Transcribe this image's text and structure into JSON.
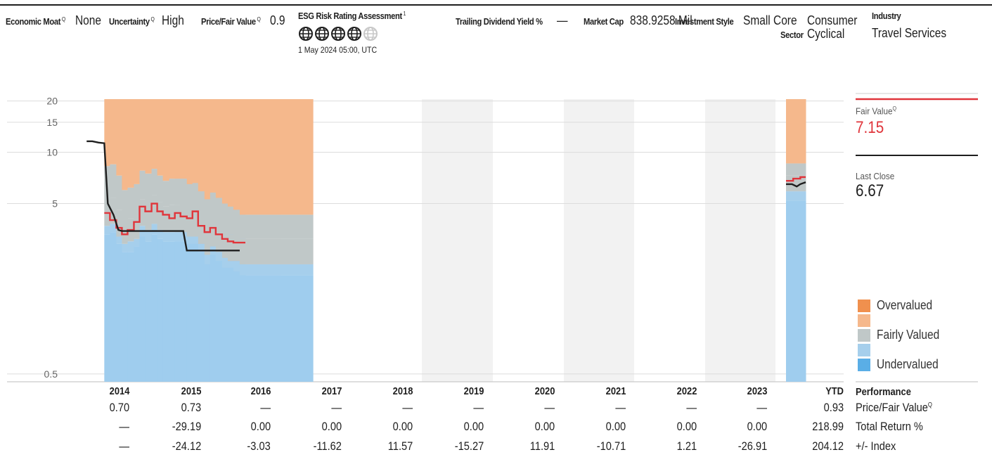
{
  "metrics": [
    {
      "label": "Economic Moat",
      "sup": "Q",
      "value": "None"
    },
    {
      "label": "Uncertainty",
      "sup": "Q",
      "value": "High"
    },
    {
      "label": "Price/Fair Value",
      "sup": "Q",
      "value": "0.9"
    },
    {
      "label": "ESG Risk Rating Assessment",
      "sup": "1",
      "value": "",
      "globes_filled": 4,
      "globes_total": 5,
      "date": "1 May 2024 05:00, UTC"
    },
    {
      "label": "Trailing Dividend Yield %",
      "sup": "",
      "value": "—"
    },
    {
      "label": "Market Cap",
      "sup": "",
      "value": "838.9258 Mil"
    },
    {
      "label": "Investment Style",
      "sup": "",
      "value": "Small Core"
    },
    {
      "label": "Sector",
      "sup": "",
      "value": "Consumer\nCyclical"
    },
    {
      "label": "Industry",
      "sup": "",
      "value": "Travel Services"
    }
  ],
  "side": {
    "fair_value_label": "Fair Value",
    "fair_value_sup": "Q",
    "fair_value": "7.15",
    "last_close_label": "Last Close",
    "last_close": "6.67"
  },
  "legend": [
    {
      "label": "Overvalued",
      "color": "#f0904e"
    },
    {
      "label": "",
      "color": "#f5b88c"
    },
    {
      "label": "Fairly Valued",
      "color": "#c0c8c8"
    },
    {
      "label": "",
      "color": "#a6cfec"
    },
    {
      "label": "Undervalued",
      "color": "#5aaee6"
    }
  ],
  "performance": {
    "title": "Performance",
    "rows": [
      {
        "label": "Price/Fair Value",
        "sup": "Q",
        "values": [
          "0.70",
          "0.73",
          "—",
          "—",
          "—",
          "—",
          "—",
          "—",
          "—",
          "—",
          "0.93"
        ]
      },
      {
        "label": "Total Return %",
        "sup": "",
        "values": [
          "—",
          "-29.19",
          "0.00",
          "0.00",
          "0.00",
          "0.00",
          "0.00",
          "0.00",
          "0.00",
          "0.00",
          "218.99"
        ]
      },
      {
        "label": "+/- Index",
        "sup": "",
        "values": [
          "—",
          "-24.12",
          "-3.03",
          "-11.62",
          "11.57",
          "-15.27",
          "11.91",
          "-10.71",
          "1.21",
          "-26.91",
          "204.12"
        ]
      }
    ]
  },
  "chart_data": {
    "type": "area",
    "y_scale": "log",
    "ylim": [
      0.45,
      20.5
    ],
    "y_ticks": [
      20,
      15,
      10,
      5,
      0.5
    ],
    "categories": [
      "2014",
      "2015",
      "2016",
      "2017",
      "2018",
      "2019",
      "2020",
      "2021",
      "2022",
      "2023",
      "YTD"
    ],
    "band_colors": {
      "overvalued": "#f5b88c",
      "fairly_valued": "#c0c8c8",
      "undervalued_light": "#a6cfec",
      "undervalued": "#9fcdee",
      "fair_value_line": "#e0353b",
      "price_line": "#1e1e1e"
    },
    "valuation_bands": [
      {
        "period": "2014",
        "x": [
          2014.0,
          2014.08,
          2014.17,
          2014.25,
          2014.33,
          2014.42,
          2014.5,
          2014.58,
          2014.67,
          2014.75,
          2014.83,
          2014.92
        ],
        "top": [
          20.5,
          20.5,
          20.5,
          20.5,
          20.5,
          20.5,
          20.5,
          20.5,
          20.5,
          20.5,
          20.5,
          20.5
        ],
        "fair_high": [
          8.3,
          8.5,
          7.3,
          6.0,
          6.2,
          6.5,
          7.8,
          7.5,
          8.0,
          7.3,
          6.8,
          7.0
        ],
        "fair_mid": [
          5.0,
          5.4,
          4.6,
          4.0,
          4.1,
          4.4,
          5.3,
          5.0,
          5.6,
          5.1,
          4.8,
          4.9
        ],
        "fair_low": [
          3.7,
          3.8,
          3.2,
          2.9,
          3.0,
          3.1,
          3.7,
          3.5,
          3.8,
          3.5,
          3.4,
          3.4
        ],
        "under_top": [
          3.3,
          3.4,
          2.9,
          2.6,
          2.6,
          2.8,
          3.2,
          3.0,
          3.3,
          3.1,
          3.0,
          3.0
        ]
      },
      {
        "period": "2015",
        "x": [
          2015.0,
          2015.08,
          2015.17,
          2015.25,
          2015.33,
          2015.42,
          2015.5,
          2015.58,
          2015.67,
          2015.75,
          2015.83,
          2015.92
        ],
        "top": [
          20.5,
          20.5,
          20.5,
          20.5,
          20.5,
          20.5,
          20.5,
          20.5,
          20.5,
          20.5,
          20.5,
          20.5
        ],
        "fair_high": [
          7.0,
          7.0,
          6.5,
          6.6,
          5.9,
          5.3,
          5.8,
          5.4,
          5.0,
          4.8,
          4.6,
          4.3
        ],
        "fair_mid": [
          4.9,
          4.8,
          4.5,
          4.5,
          4.1,
          3.6,
          4.0,
          3.7,
          3.4,
          3.3,
          3.2,
          3.1
        ],
        "fair_low": [
          3.4,
          3.4,
          3.2,
          3.2,
          2.9,
          2.5,
          2.8,
          2.6,
          2.4,
          2.3,
          2.3,
          2.2
        ],
        "under_top": [
          3.0,
          3.0,
          2.9,
          2.9,
          2.6,
          2.2,
          2.5,
          2.3,
          2.1,
          2.1,
          2.0,
          1.9
        ]
      }
    ],
    "ytd_band": {
      "x": [
        2024.0,
        2024.33
      ],
      "top": 20.5,
      "fair_high": 8.6,
      "fair_mid": 7.3,
      "fair_low": 5.9,
      "under_top": 5.2
    },
    "fair_value_series": {
      "x": [
        2014.0,
        2014.08,
        2014.17,
        2014.25,
        2014.33,
        2014.42,
        2014.5,
        2014.58,
        2014.67,
        2014.75,
        2014.83,
        2014.92,
        2015.0,
        2015.08,
        2015.17,
        2015.25,
        2015.33,
        2015.42,
        2015.5,
        2015.58,
        2015.67,
        2015.75,
        2015.83,
        2015.92
      ],
      "values": [
        4.4,
        4.0,
        3.6,
        3.3,
        3.5,
        3.9,
        4.8,
        4.5,
        5.0,
        4.5,
        4.3,
        4.1,
        4.4,
        4.2,
        4.1,
        4.5,
        3.7,
        3.4,
        3.6,
        3.3,
        3.1,
        3.0,
        2.95,
        2.95
      ]
    },
    "ytd_fair_value": {
      "x": [
        2024.0,
        2024.06,
        2024.12,
        2024.18,
        2024.24,
        2024.3,
        2024.33
      ],
      "values": [
        6.8,
        6.8,
        7.0,
        7.0,
        7.15,
        7.15,
        7.15
      ]
    },
    "price_series": {
      "x": [
        2013.75,
        2013.83,
        2013.92,
        2014.0,
        2014.05,
        2014.13,
        2014.2,
        2014.25,
        2015.0,
        2015.12,
        2015.17,
        2015.92
      ],
      "values": [
        11.6,
        11.6,
        11.4,
        11.3,
        5.0,
        4.3,
        3.5,
        3.45,
        3.45,
        3.45,
        2.65,
        2.65
      ]
    },
    "ytd_price": {
      "x": [
        2024.0,
        2024.1,
        2024.18,
        2024.24,
        2024.33
      ],
      "values": [
        6.5,
        6.5,
        6.3,
        6.5,
        6.67
      ]
    }
  }
}
